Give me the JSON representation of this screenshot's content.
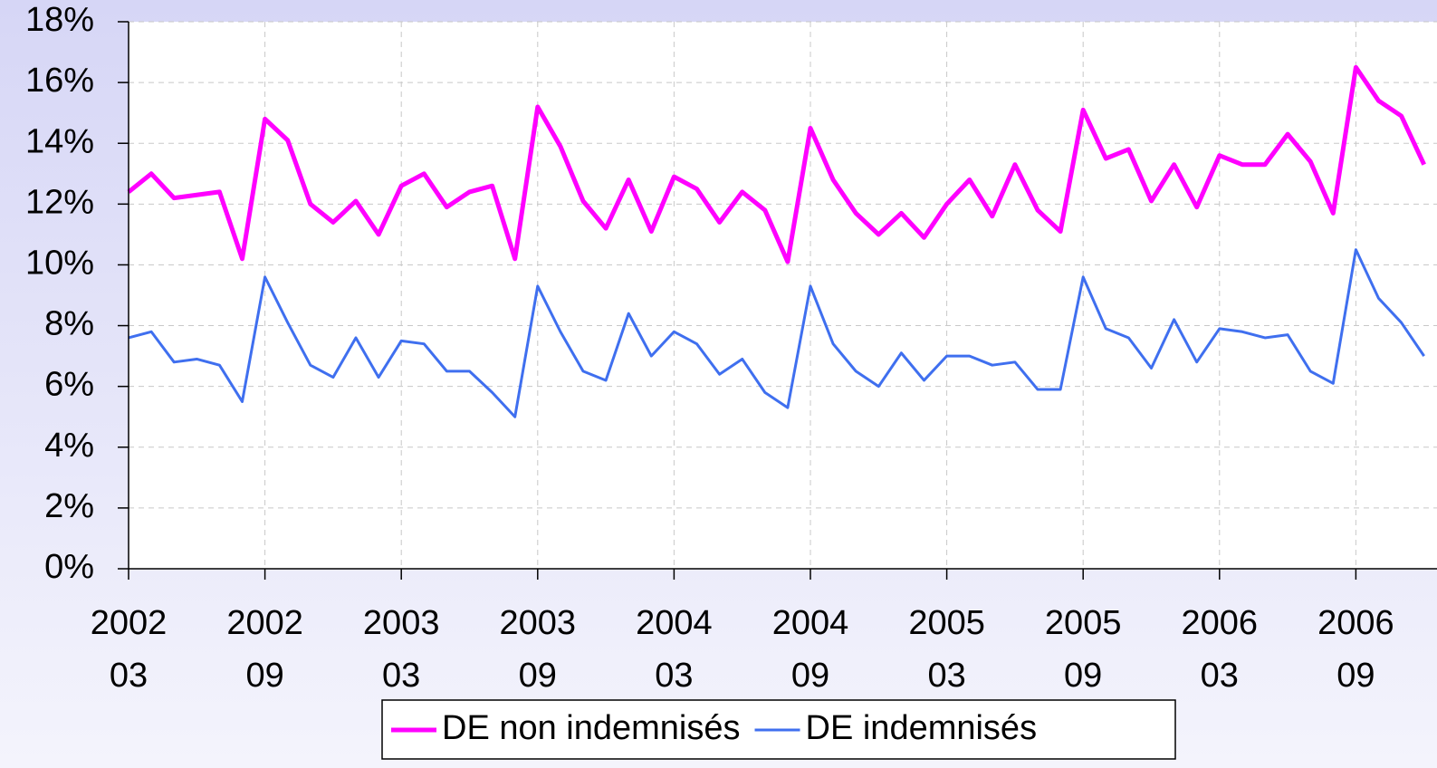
{
  "chart_data": {
    "type": "line",
    "categories": [
      "2002 03",
      null,
      null,
      null,
      null,
      null,
      "2002 09",
      null,
      null,
      null,
      null,
      null,
      "2003 03",
      null,
      null,
      null,
      null,
      null,
      "2003 09",
      null,
      null,
      null,
      null,
      null,
      "2004 03",
      null,
      null,
      null,
      null,
      null,
      "2004 09",
      null,
      null,
      null,
      null,
      null,
      "2005 03",
      null,
      null,
      null,
      null,
      null,
      "2005 09",
      null,
      null,
      null,
      null,
      null,
      "2006 03",
      null,
      null,
      null,
      null,
      null,
      "2006 09",
      null,
      null,
      null
    ],
    "series": [
      {
        "name": "DE non indemnisés",
        "color": "#ff00ff",
        "values": [
          12.4,
          13.0,
          12.2,
          12.3,
          12.4,
          10.2,
          14.8,
          14.1,
          12.0,
          11.4,
          12.1,
          11.0,
          12.6,
          13.0,
          11.9,
          12.4,
          12.6,
          10.2,
          15.2,
          13.9,
          12.1,
          11.2,
          12.8,
          11.1,
          12.9,
          12.5,
          11.4,
          12.4,
          11.8,
          10.1,
          14.5,
          12.8,
          11.7,
          11.0,
          11.7,
          10.9,
          12.0,
          12.8,
          11.6,
          13.3,
          11.8,
          11.1,
          15.1,
          13.5,
          13.8,
          12.1,
          13.3,
          11.9,
          13.6,
          13.3,
          13.3,
          14.3,
          13.4,
          11.7,
          16.5,
          15.4,
          14.9,
          13.3
        ]
      },
      {
        "name": "DE indemnisés",
        "color": "#3f6fef",
        "values": [
          7.6,
          7.8,
          6.8,
          6.9,
          6.7,
          5.5,
          9.6,
          8.1,
          6.7,
          6.3,
          7.6,
          6.3,
          7.5,
          7.4,
          6.5,
          6.5,
          5.8,
          5.0,
          9.3,
          7.8,
          6.5,
          6.2,
          8.4,
          7.0,
          7.8,
          7.4,
          6.4,
          6.9,
          5.8,
          5.3,
          9.3,
          7.4,
          6.5,
          6.0,
          7.1,
          6.2,
          7.0,
          7.0,
          6.7,
          6.8,
          5.9,
          5.9,
          9.6,
          7.9,
          7.6,
          6.6,
          8.2,
          6.8,
          7.9,
          7.8,
          7.6,
          7.7,
          6.5,
          6.1,
          10.5,
          8.9,
          8.1,
          7.0
        ]
      }
    ],
    "ylim": [
      0,
      18
    ],
    "yticks": [
      {
        "value": 0,
        "label": "0%"
      },
      {
        "value": 2,
        "label": "2%"
      },
      {
        "value": 4,
        "label": "4%"
      },
      {
        "value": 6,
        "label": "6%"
      },
      {
        "value": 8,
        "label": "8%"
      },
      {
        "value": 10,
        "label": "10%"
      },
      {
        "value": 12,
        "label": "12%"
      },
      {
        "value": 14,
        "label": "14%"
      },
      {
        "value": 16,
        "label": "16%"
      },
      {
        "value": 18,
        "label": "18%"
      }
    ],
    "grid": true,
    "legend": "bottom"
  }
}
